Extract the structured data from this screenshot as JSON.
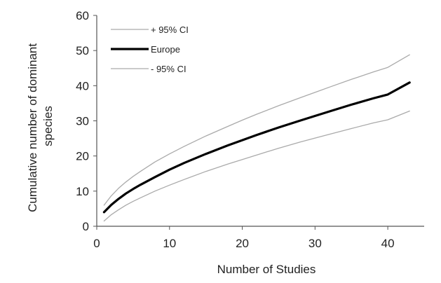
{
  "chart_data": {
    "type": "line",
    "title": "",
    "xlabel": "Number of Studies",
    "ylabel_lines": [
      "Cumulative number of dominant",
      "species"
    ],
    "xlim": [
      0,
      45
    ],
    "ylim": [
      0,
      60
    ],
    "xticks": [
      0,
      10,
      20,
      30,
      40
    ],
    "yticks": [
      0,
      10,
      20,
      30,
      40,
      50,
      60
    ],
    "grid": false,
    "legend_position": "top-left",
    "legend_order": [
      0,
      1,
      2
    ],
    "series": [
      {
        "name": "+ 95% CI",
        "color": "#aaaaaa",
        "style": "thin",
        "x": [
          1,
          2,
          3,
          4,
          5,
          6,
          8,
          10,
          12,
          15,
          18,
          20,
          22,
          25,
          28,
          30,
          32,
          35,
          38,
          40,
          43
        ],
        "y": [
          6,
          8.7,
          10.8,
          12.6,
          14.2,
          15.6,
          18.3,
          20.6,
          22.7,
          25.7,
          28.4,
          30.2,
          31.9,
          34.3,
          36.6,
          38.1,
          39.6,
          41.8,
          43.9,
          45.2,
          48.8
        ]
      },
      {
        "name": "Europe",
        "color": "#000000",
        "style": "thick",
        "x": [
          1,
          2,
          3,
          4,
          5,
          6,
          8,
          10,
          12,
          15,
          18,
          20,
          22,
          25,
          28,
          30,
          32,
          35,
          38,
          40,
          43
        ],
        "y": [
          4,
          6.1,
          7.8,
          9.3,
          10.6,
          11.8,
          14,
          16.1,
          18,
          20.6,
          23,
          24.5,
          26,
          28.1,
          30.1,
          31.4,
          32.7,
          34.6,
          36.4,
          37.5,
          40.9
        ]
      },
      {
        "name": "- 95% CI",
        "color": "#aaaaaa",
        "style": "thin",
        "x": [
          1,
          2,
          3,
          4,
          5,
          6,
          8,
          10,
          12,
          15,
          18,
          20,
          22,
          25,
          28,
          30,
          32,
          35,
          38,
          40,
          43
        ],
        "y": [
          1.5,
          3.3,
          4.7,
          6,
          7.1,
          8.1,
          10,
          11.7,
          13.3,
          15.6,
          17.7,
          19,
          20.3,
          22.2,
          24,
          25.1,
          26.2,
          27.8,
          29.4,
          30.3,
          32.8
        ]
      }
    ]
  }
}
